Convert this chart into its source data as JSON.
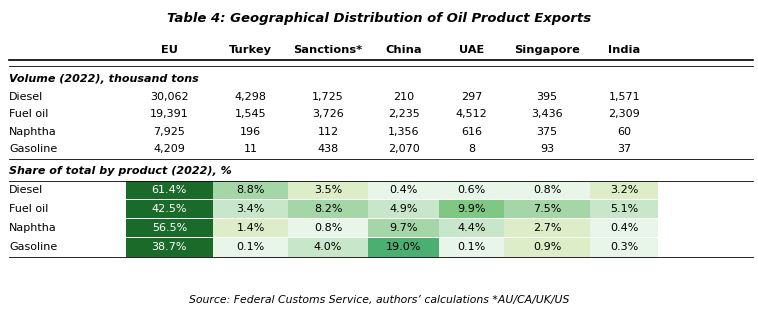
{
  "title": "Table 4: Geographical Distribution of Oil Product Exports",
  "columns": [
    "",
    "EU",
    "Turkey",
    "Sanctions*",
    "China",
    "UAE",
    "Singapore",
    "India"
  ],
  "volume_header": "Volume (2022), thousand tons",
  "volume_rows": [
    [
      "Diesel",
      "30,062",
      "4,298",
      "1,725",
      "210",
      "297",
      "395",
      "1,571"
    ],
    [
      "Fuel oil",
      "19,391",
      "1,545",
      "3,726",
      "2,235",
      "4,512",
      "3,436",
      "2,309"
    ],
    [
      "Naphtha",
      "7,925",
      "196",
      "112",
      "1,356",
      "616",
      "375",
      "60"
    ],
    [
      "Gasoline",
      "4,209",
      "11",
      "438",
      "2,070",
      "8",
      "93",
      "37"
    ]
  ],
  "share_header": "Share of total by product (2022), %",
  "share_rows": [
    [
      "Diesel",
      "61.4%",
      "8.8%",
      "3.5%",
      "0.4%",
      "0.6%",
      "0.8%",
      "3.2%"
    ],
    [
      "Fuel oil",
      "42.5%",
      "3.4%",
      "8.2%",
      "4.9%",
      "9.9%",
      "7.5%",
      "5.1%"
    ],
    [
      "Naphtha",
      "56.5%",
      "1.4%",
      "0.8%",
      "9.7%",
      "4.4%",
      "2.7%",
      "0.4%"
    ],
    [
      "Gasoline",
      "38.7%",
      "0.1%",
      "4.0%",
      "19.0%",
      "0.1%",
      "0.9%",
      "0.3%"
    ]
  ],
  "share_values": [
    [
      61.4,
      8.8,
      3.5,
      0.4,
      0.6,
      0.8,
      3.2
    ],
    [
      42.5,
      3.4,
      8.2,
      4.9,
      9.9,
      7.5,
      5.1
    ],
    [
      56.5,
      1.4,
      0.8,
      9.7,
      4.4,
      2.7,
      0.4
    ],
    [
      38.7,
      0.1,
      4.0,
      19.0,
      0.1,
      0.9,
      0.3
    ]
  ],
  "source": "Source: Federal Customs Service, authors’ calculations *AU/CA/UK/US",
  "bg_color": "#ffffff"
}
